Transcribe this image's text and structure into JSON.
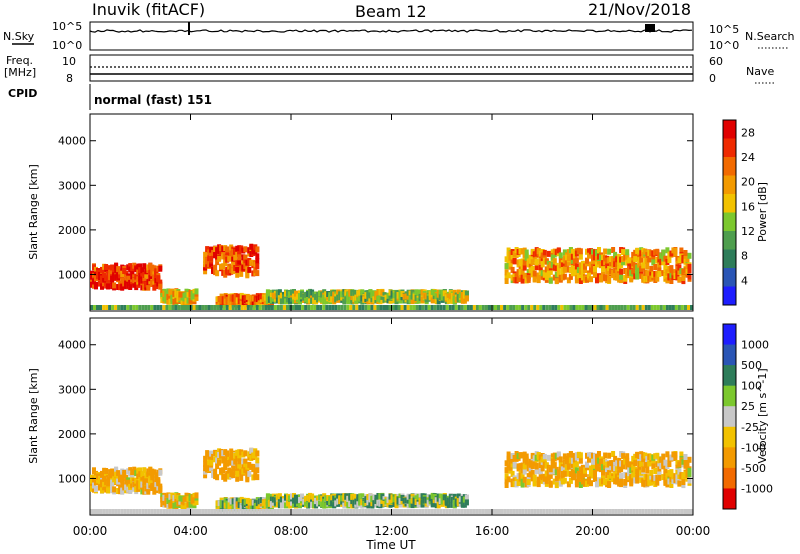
{
  "header": {
    "station": "Inuvik (fitACF)",
    "beam": "Beam 12",
    "date": "21/Nov/2018"
  },
  "panels_left": {
    "nsky": "N.Sky",
    "freq_top": "Freq.",
    "freq_unit": "[MHz]",
    "cpid": "CPID"
  },
  "panels_right": {
    "nsearch": "N.Search",
    "nave": "Nave"
  },
  "noise_axis": {
    "left_top": "10^5",
    "left_bot": "10^0",
    "right_top": "10^5",
    "right_bot": "10^0"
  },
  "freq_axis": {
    "left_ticks": [
      "10",
      "8"
    ],
    "right_ticks": [
      "60",
      "0"
    ]
  },
  "cpid_text": "normal (fast) 151",
  "colors": {
    "power": [
      "#1e1eff",
      "#2a55b5",
      "#2e7d5a",
      "#4e9e4e",
      "#7cc82e",
      "#f2c200",
      "#f39a00",
      "#f26a00",
      "#ef2a00",
      "#e00000"
    ],
    "velocity": [
      "#e00000",
      "#f26a00",
      "#f39a00",
      "#f2c200",
      "#c8c8c8",
      "#7cc82e",
      "#2e7d5a",
      "#2a55b5",
      "#1e1eff"
    ]
  },
  "chart_data": [
    {
      "type": "heatmap",
      "title": "",
      "xlabel": "Time UT",
      "ylabel": "Slant Range [km]",
      "x_ticks": [
        "00:00",
        "04:00",
        "08:00",
        "12:00",
        "16:00",
        "20:00",
        "00:00"
      ],
      "x_range_hours": [
        0,
        24
      ],
      "y_ticks": [
        "1000",
        "2000",
        "3000",
        "4000"
      ],
      "ylim": [
        180,
        4600
      ],
      "colorbar_label": "Power [dB]",
      "colorbar_ticks": [
        "4",
        "8",
        "12",
        "16",
        "20",
        "24",
        "28"
      ],
      "colorbar_range": [
        0,
        30
      ],
      "regions": [
        {
          "t_start": 0.0,
          "t_end": 2.8,
          "range_center": 950,
          "range_width": 500,
          "value": 26
        },
        {
          "t_start": 2.8,
          "t_end": 4.2,
          "range_center": 500,
          "range_width": 250,
          "value": 18
        },
        {
          "t_start": 4.5,
          "t_end": 6.6,
          "range_center": 1300,
          "range_width": 650,
          "value": 24
        },
        {
          "t_start": 5.0,
          "t_end": 7.2,
          "range_center": 420,
          "range_width": 200,
          "value": 22
        },
        {
          "t_start": 7.0,
          "t_end": 15.0,
          "range_center": 500,
          "range_width": 220,
          "value": 14
        },
        {
          "t_start": 16.5,
          "t_end": 23.8,
          "range_center": 1200,
          "range_width": 700,
          "value": 20
        }
      ]
    },
    {
      "type": "heatmap",
      "title": "",
      "xlabel": "Time UT",
      "ylabel": "Slant Range [km]",
      "x_ticks": [
        "00:00",
        "04:00",
        "08:00",
        "12:00",
        "16:00",
        "20:00",
        "00:00"
      ],
      "x_range_hours": [
        0,
        24
      ],
      "y_ticks": [
        "1000",
        "2000",
        "3000",
        "4000"
      ],
      "ylim": [
        180,
        4600
      ],
      "colorbar_label": "Velocity [m s^-1]",
      "colorbar_ticks": [
        "-1000",
        "-500",
        "-100",
        "-25",
        "25",
        "100",
        "500",
        "1000"
      ],
      "regions": [
        {
          "t_start": 0.0,
          "t_end": 2.8,
          "range_center": 950,
          "range_width": 500,
          "value": -120
        },
        {
          "t_start": 2.8,
          "t_end": 4.2,
          "range_center": 500,
          "range_width": 250,
          "value": -60
        },
        {
          "t_start": 4.5,
          "t_end": 6.6,
          "range_center": 1300,
          "range_width": 650,
          "value": -150
        },
        {
          "t_start": 5.0,
          "t_end": 7.2,
          "range_center": 420,
          "range_width": 200,
          "value": 20
        },
        {
          "t_start": 7.0,
          "t_end": 15.0,
          "range_center": 500,
          "range_width": 220,
          "value": 60
        },
        {
          "t_start": 16.5,
          "t_end": 23.8,
          "range_center": 1200,
          "range_width": 700,
          "value": -110
        }
      ]
    }
  ]
}
